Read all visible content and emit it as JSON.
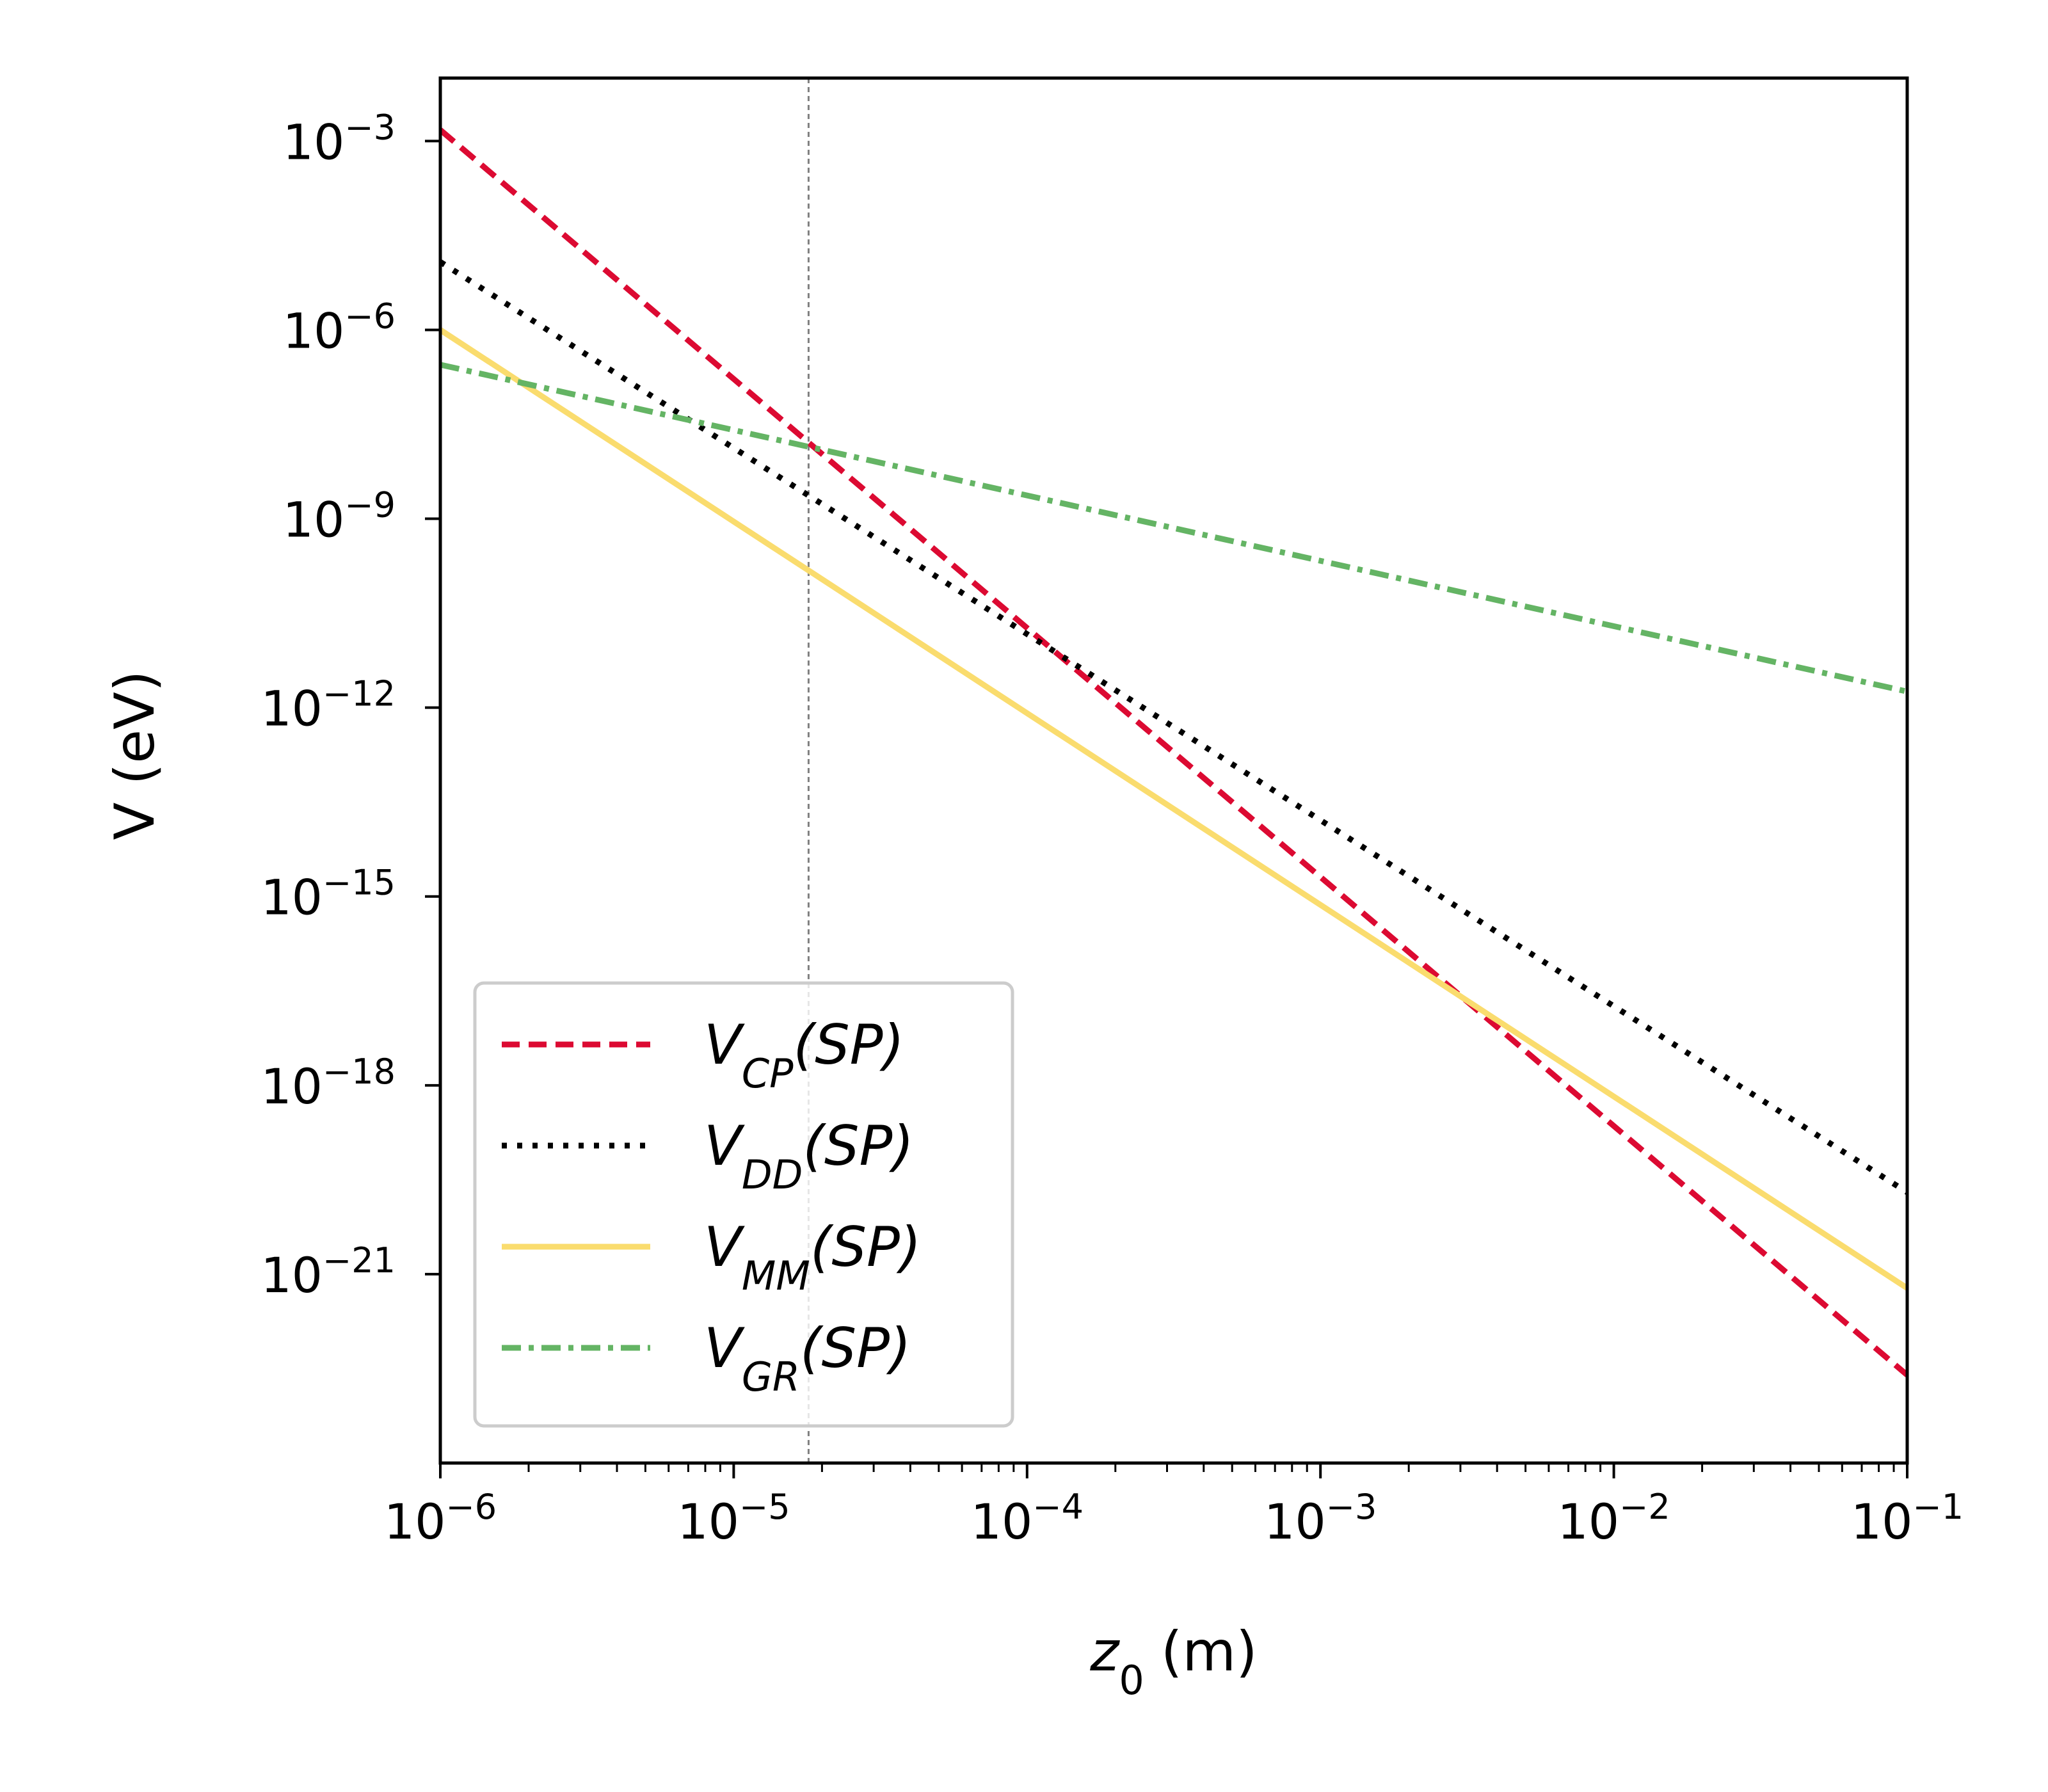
{
  "chart_data": {
    "type": "line",
    "xscale": "log",
    "yscale": "log",
    "xlim": [
      1e-06,
      0.1
    ],
    "ylim": [
      1e-24,
      0.01
    ],
    "xlabel_var": "z",
    "xlabel_sub": "0",
    "xlabel_unit": "(m)",
    "ylabel": "V (eV)",
    "x_ticks": [
      {
        "value": 1e-06,
        "base": "10",
        "exp": "−6"
      },
      {
        "value": 1e-05,
        "base": "10",
        "exp": "−5"
      },
      {
        "value": 0.0001,
        "base": "10",
        "exp": "−4"
      },
      {
        "value": 0.001,
        "base": "10",
        "exp": "−3"
      },
      {
        "value": 0.01,
        "base": "10",
        "exp": "−2"
      },
      {
        "value": 0.1,
        "base": "10",
        "exp": "−1"
      }
    ],
    "y_ticks": [
      {
        "value": 0.001,
        "base": "10",
        "exp": "−3"
      },
      {
        "value": 1e-06,
        "base": "10",
        "exp": "−6"
      },
      {
        "value": 1e-09,
        "base": "10",
        "exp": "−9"
      },
      {
        "value": 1e-12,
        "base": "10",
        "exp": "−12"
      },
      {
        "value": 1e-15,
        "base": "10",
        "exp": "−15"
      },
      {
        "value": 1e-18,
        "base": "10",
        "exp": "−18"
      },
      {
        "value": 1e-21,
        "base": "10",
        "exp": "−21"
      }
    ],
    "vline": {
      "x": 1.8e-05,
      "color": "#808080",
      "style": "dashed"
    },
    "series": [
      {
        "name": "CP",
        "label_main": "V",
        "label_sub": "CP",
        "label_suffix": "(SP)",
        "color": "#DC0A32",
        "style": "dashed",
        "x": [
          1e-06,
          0.1
        ],
        "y": [
          0.0015,
          2.5e-23
        ]
      },
      {
        "name": "DD",
        "label_main": "V",
        "label_sub": "DD",
        "label_suffix": "(SP)",
        "color": "#000000",
        "style": "dotted",
        "x": [
          1e-06,
          0.1
        ],
        "y": [
          1.2e-05,
          2e-20
        ]
      },
      {
        "name": "MM",
        "label_main": "V",
        "label_sub": "MM",
        "label_suffix": "(SP)",
        "color": "#FADC6E",
        "style": "solid",
        "x": [
          1e-06,
          0.1
        ],
        "y": [
          1e-06,
          6e-22
        ]
      },
      {
        "name": "GR",
        "label_main": "V",
        "label_sub": "GR",
        "label_suffix": "(SP)",
        "color": "#64B464",
        "style": "dashdot",
        "x": [
          1e-06,
          0.1
        ],
        "y": [
          2.8e-07,
          1.8e-12
        ]
      }
    ],
    "legend_position": "lower-left"
  }
}
